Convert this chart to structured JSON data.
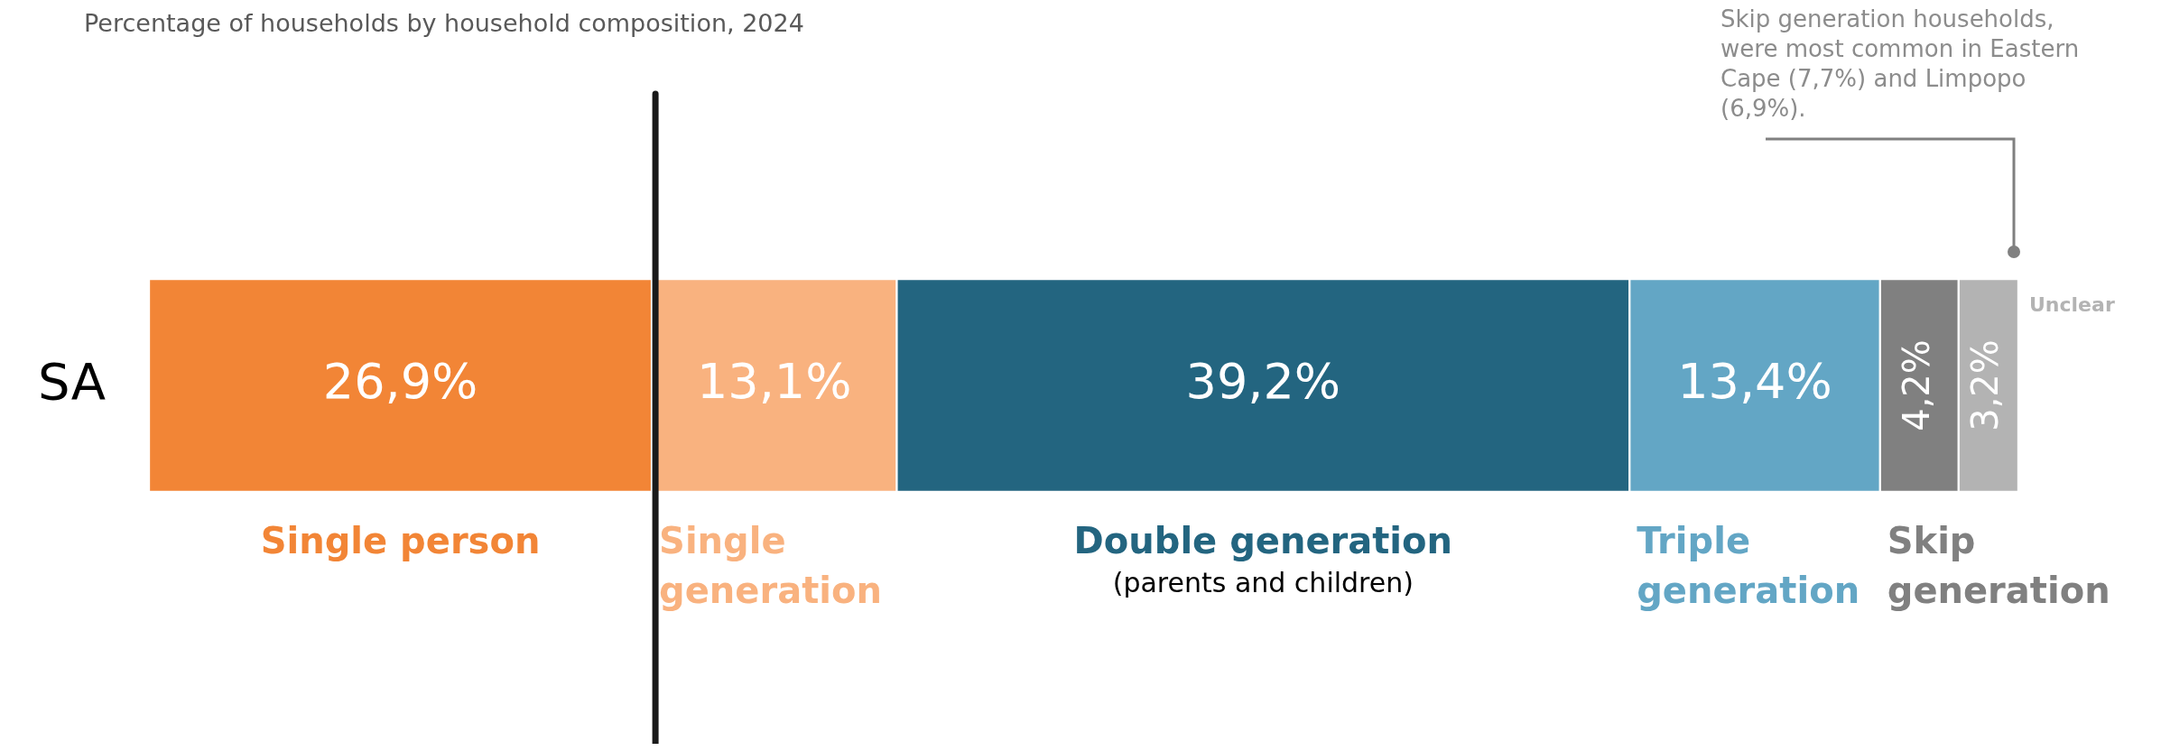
{
  "chart_data": {
    "type": "bar",
    "orientation": "horizontal",
    "stacked": true,
    "title": "Percentage of households by household composition, 2024",
    "categories": [
      "SA"
    ],
    "xlim": [
      0,
      100
    ],
    "tick_labels": "y",
    "series": [
      {
        "name": "Single person",
        "color": "#f28536",
        "values": [
          26.9
        ],
        "value_labels": [
          "26,9%"
        ]
      },
      {
        "name": "Single generation",
        "color": "#f9b27f",
        "values": [
          13.1
        ],
        "value_labels": [
          "13,1%"
        ]
      },
      {
        "name": "Double generation",
        "color": "#236580",
        "values": [
          39.2
        ],
        "value_labels": [
          "39,2%"
        ]
      },
      {
        "name": "Triple generation",
        "color": "#63a6c5",
        "values": [
          13.4
        ],
        "value_labels": [
          "13,4%"
        ]
      },
      {
        "name": "Skip generation",
        "color": "#808080",
        "values": [
          4.2
        ],
        "value_labels": [
          "4,2%"
        ]
      },
      {
        "name": "Unclear",
        "color": "#b3b3b3",
        "values": [
          3.2
        ],
        "value_labels": [
          "3,2%"
        ]
      }
    ],
    "ref_lines": [
      {
        "axis": "x",
        "value": 26.9,
        "color": "#1a1a1a"
      }
    ],
    "annotations": [
      "Skip generation households, were most common in Eastern Cape (7,7%) and Limpopo (6,9%).",
      "(parents and children)"
    ]
  }
}
